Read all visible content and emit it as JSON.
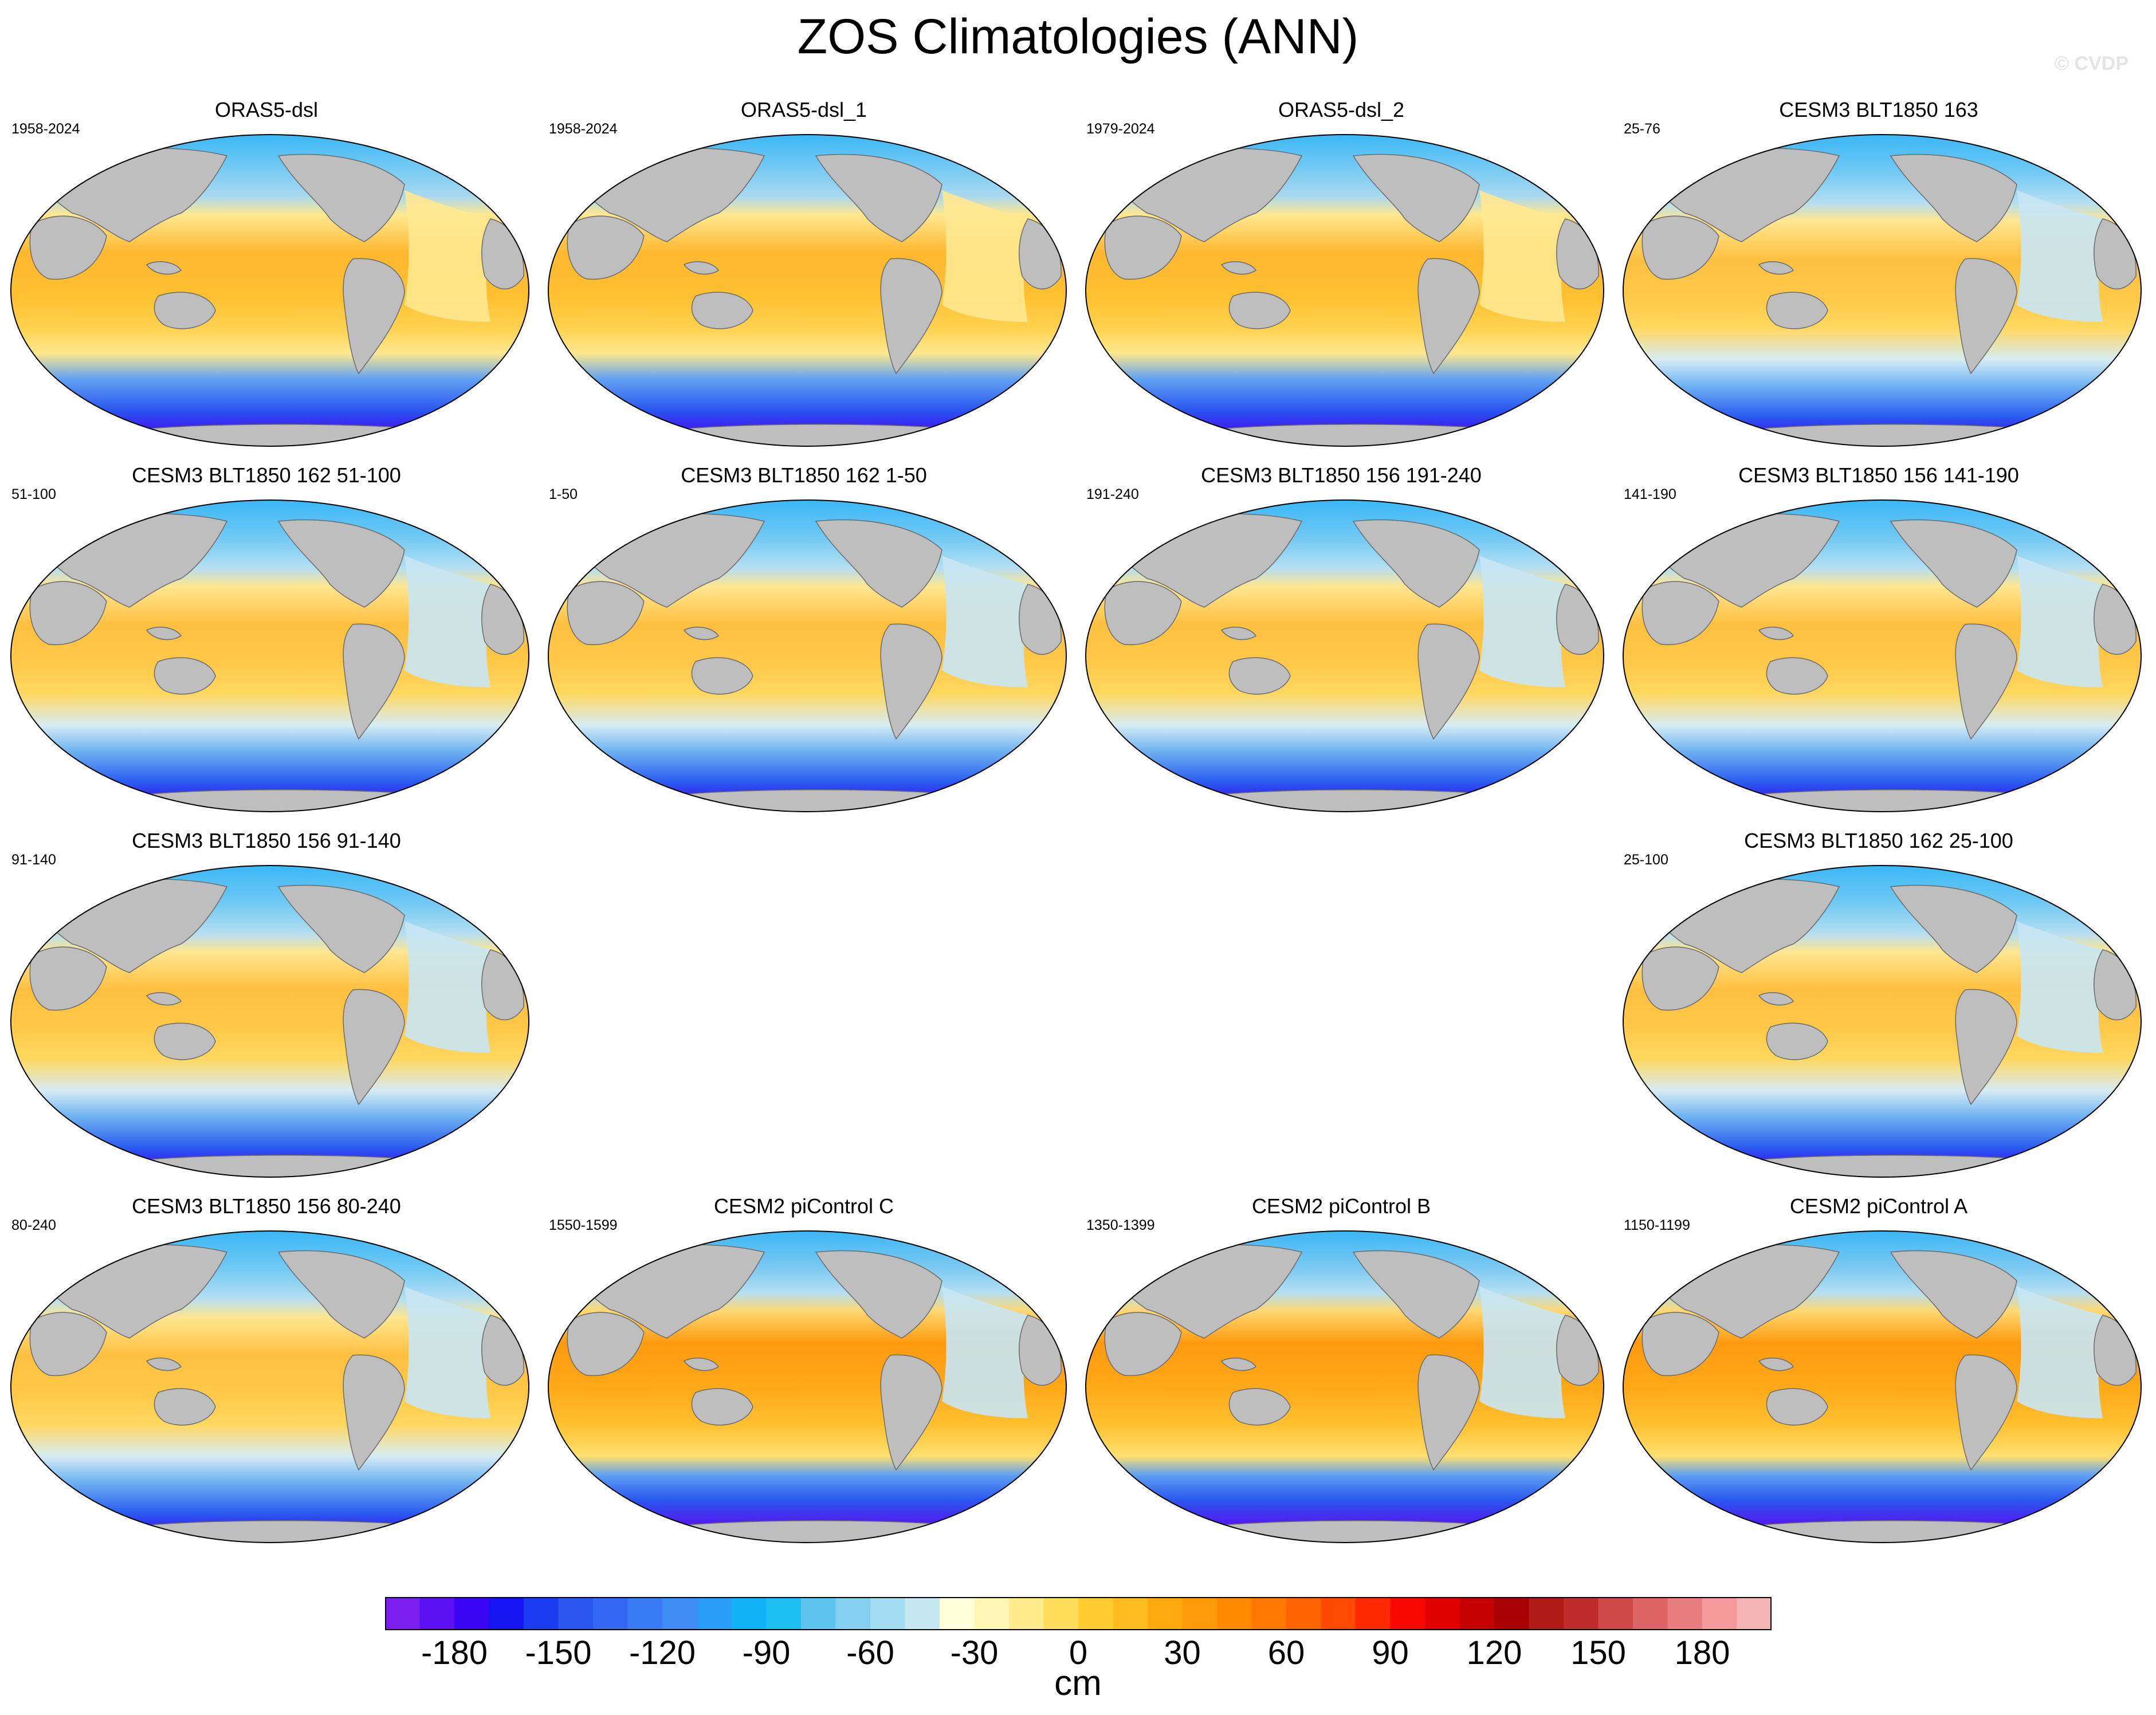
{
  "title": "ZOS Climatologies (ANN)",
  "watermark": "© CVDP",
  "panels": [
    {
      "title": "ORAS5-dsl",
      "period": "1958-2024",
      "style": "oras"
    },
    {
      "title": "ORAS5-dsl_1",
      "period": "1958-2024",
      "style": "oras"
    },
    {
      "title": "ORAS5-dsl_2",
      "period": "1979-2024",
      "style": "oras"
    },
    {
      "title": "CESM3 BLT1850 163",
      "period": "25-76",
      "style": "cesm3"
    },
    {
      "title": "CESM3 BLT1850 162 51-100",
      "period": "51-100",
      "style": "cesm3"
    },
    {
      "title": "CESM3 BLT1850 162 1-50",
      "period": "1-50",
      "style": "cesm3"
    },
    {
      "title": "CESM3 BLT1850 156 191-240",
      "period": "191-240",
      "style": "cesm3"
    },
    {
      "title": "CESM3 BLT1850 156 141-190",
      "period": "141-190",
      "style": "cesm3"
    },
    {
      "title": "CESM3 BLT1850 156 91-140",
      "period": "91-140",
      "style": "cesm3"
    },
    {
      "title": "CESM3 BLT1850 162 25-100",
      "period": "25-100",
      "style": "cesm3"
    },
    {
      "title": "CESM3 BLT1850 156 80-240",
      "period": "80-240",
      "style": "cesm3"
    },
    {
      "title": "CESM2 piControl C",
      "period": "1550-1599",
      "style": "cesm2"
    },
    {
      "title": "CESM2 piControl B",
      "period": "1350-1399",
      "style": "cesm2"
    },
    {
      "title": "CESM2 piControl A",
      "period": "1150-1199",
      "style": "cesm2"
    }
  ],
  "colorbar": {
    "units": "cm",
    "min": -200,
    "max": 200,
    "step": 10,
    "tick_values": [
      -180,
      -150,
      -120,
      -90,
      -60,
      -30,
      0,
      30,
      60,
      90,
      120,
      150,
      180
    ],
    "tick_labels": [
      "-180",
      "-150",
      "-120",
      "-90",
      "-60",
      "-30",
      "0",
      "30",
      "60",
      "90",
      "120",
      "150",
      "180"
    ],
    "colors": [
      "#7a1ff0",
      "#5a10f2",
      "#3a05f4",
      "#1414f2",
      "#1a3cf0",
      "#2a56f0",
      "#3468f2",
      "#3a7af2",
      "#3f8cf4",
      "#2a9ef6",
      "#12b2f6",
      "#1ec0f2",
      "#5ec6ee",
      "#84d0f0",
      "#a4dcf2",
      "#c6e8f2",
      "#fefed8",
      "#fff6b4",
      "#ffea8c",
      "#ffdc5a",
      "#ffcc32",
      "#ffbc20",
      "#ffaa10",
      "#ff9a08",
      "#ff8a00",
      "#ff7800",
      "#ff6200",
      "#ff4a00",
      "#ff2a00",
      "#f80800",
      "#e00000",
      "#c40000",
      "#a80000",
      "#b01a14",
      "#c02c2c",
      "#d04848",
      "#dc6464",
      "#e87e7e",
      "#f49a9a",
      "#f4b4b4"
    ]
  }
}
